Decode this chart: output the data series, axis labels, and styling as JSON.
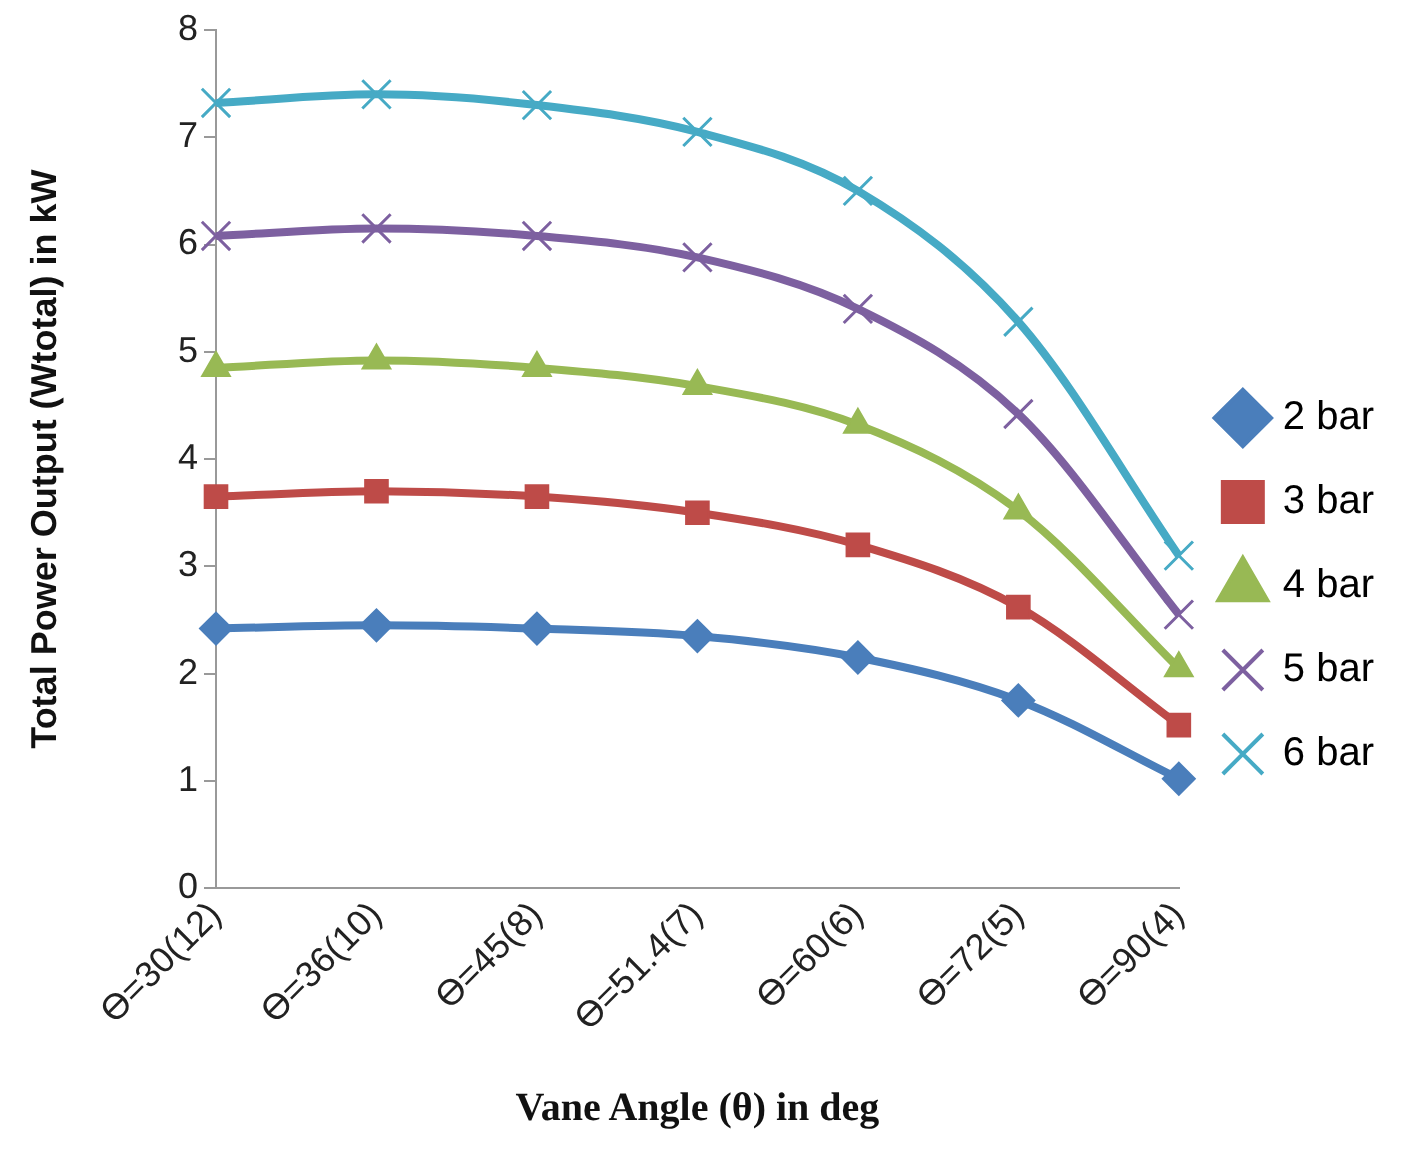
{
  "chart_data": {
    "type": "line",
    "xlabel": "Vane Angle (θ) in deg",
    "ylabel": "Total Power Output (Wtotal) in kW",
    "categories": [
      "Ɵ=30(12)",
      "Ɵ=36(10)",
      "Ɵ=45(8)",
      "Ɵ=51.4(7)",
      "Ɵ=60(6)",
      "Ɵ=72(5)",
      "Ɵ=90(4)"
    ],
    "series": [
      {
        "name": "2 bar",
        "color": "#4a7ebb",
        "marker": "diamond",
        "values": [
          2.42,
          2.45,
          2.42,
          2.35,
          2.15,
          1.75,
          1.02
        ]
      },
      {
        "name": "3 bar",
        "color": "#be4b48",
        "marker": "square",
        "values": [
          3.65,
          3.7,
          3.65,
          3.5,
          3.2,
          2.62,
          1.52
        ]
      },
      {
        "name": "4 bar",
        "color": "#98b954",
        "marker": "triangle",
        "values": [
          4.85,
          4.92,
          4.85,
          4.68,
          4.32,
          3.52,
          2.05
        ]
      },
      {
        "name": "5 bar",
        "color": "#7d60a0",
        "marker": "cross",
        "values": [
          6.08,
          6.15,
          6.08,
          5.88,
          5.4,
          4.42,
          2.55
        ]
      },
      {
        "name": "6 bar",
        "color": "#46aac5",
        "marker": "cross",
        "values": [
          7.32,
          7.4,
          7.3,
          7.05,
          6.5,
          5.28,
          3.1
        ]
      }
    ],
    "ylim": [
      0,
      8
    ],
    "yticks": [
      0,
      1,
      2,
      3,
      4,
      5,
      6,
      7,
      8
    ],
    "grid": false,
    "legend": "right",
    "line_style": "solid"
  }
}
